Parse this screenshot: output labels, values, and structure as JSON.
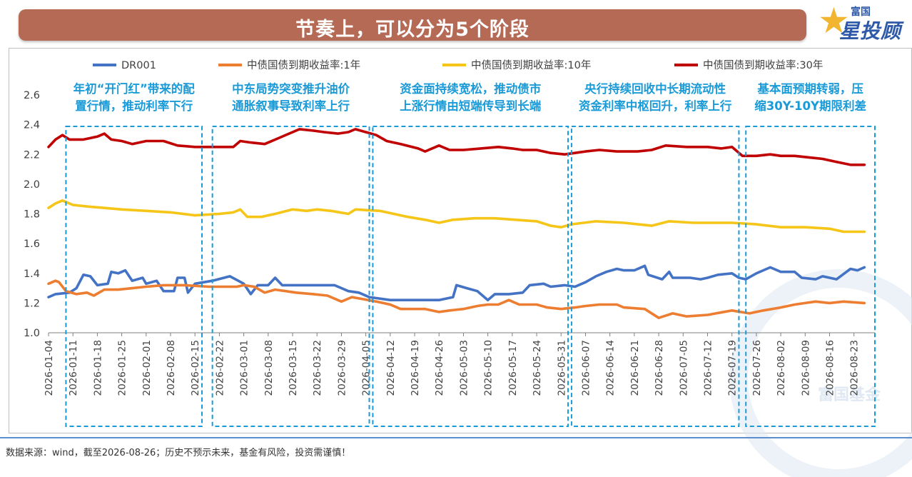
{
  "header": {
    "title": "节奏上，可以分为5个阶段"
  },
  "logo": {
    "top_text": "富国",
    "main_text": "星投顾",
    "icon": "star-icon"
  },
  "footer": {
    "source": "数据来源：wind，截至2026-08-26；历史不预示未来，基金有风险，投资需谨慎！"
  },
  "watermark": {
    "text": "富国基金"
  },
  "chart_data": {
    "type": "line",
    "title": "",
    "xlabel": "",
    "ylabel": "",
    "ylim": [
      1.0,
      2.6
    ],
    "yticks": [
      "1.0",
      "1.2",
      "1.4",
      "1.6",
      "1.8",
      "2.0",
      "2.2",
      "2.4",
      "2.6"
    ],
    "x_tick_labels": [
      "2026-01-04",
      "2026-01-11",
      "2026-01-18",
      "2026-01-25",
      "2026-02-01",
      "2026-02-08",
      "2026-02-15",
      "2026-02-22",
      "2026-03-01",
      "2026-03-08",
      "2026-03-15",
      "2026-03-22",
      "2026-03-29",
      "2026-04-05",
      "2026-04-12",
      "2026-04-19",
      "2026-04-26",
      "2026-05-03",
      "2026-05-10",
      "2026-05-17",
      "2026-05-24",
      "2026-05-31",
      "2026-06-07",
      "2026-06-14",
      "2026-06-21",
      "2026-06-28",
      "2026-07-05",
      "2026-07-12",
      "2026-07-19",
      "2026-07-26",
      "2026-08-02",
      "2026-08-09",
      "2026-08-16",
      "2026-08-23"
    ],
    "grid": false,
    "legend_position": "top",
    "series": [
      {
        "name": "DR001",
        "color": "#4472c4",
        "points": [
          [
            "2026-01-04",
            1.24
          ],
          [
            "2026-01-06",
            1.26
          ],
          [
            "2026-01-10",
            1.27
          ],
          [
            "2026-01-12",
            1.3
          ],
          [
            "2026-01-14",
            1.39
          ],
          [
            "2026-01-16",
            1.38
          ],
          [
            "2026-01-18",
            1.32
          ],
          [
            "2026-01-21",
            1.33
          ],
          [
            "2026-01-22",
            1.41
          ],
          [
            "2026-01-24",
            1.4
          ],
          [
            "2026-01-26",
            1.42
          ],
          [
            "2026-01-28",
            1.35
          ],
          [
            "2026-01-31",
            1.37
          ],
          [
            "2026-02-01",
            1.33
          ],
          [
            "2026-02-04",
            1.35
          ],
          [
            "2026-02-06",
            1.28
          ],
          [
            "2026-02-09",
            1.28
          ],
          [
            "2026-02-10",
            1.37
          ],
          [
            "2026-02-12",
            1.37
          ],
          [
            "2026-02-13",
            1.27
          ],
          [
            "2026-02-15",
            1.33
          ],
          [
            "2026-02-20",
            1.35
          ],
          [
            "2026-02-25",
            1.38
          ],
          [
            "2026-03-01",
            1.33
          ],
          [
            "2026-03-03",
            1.26
          ],
          [
            "2026-03-05",
            1.32
          ],
          [
            "2026-03-08",
            1.32
          ],
          [
            "2026-03-10",
            1.37
          ],
          [
            "2026-03-12",
            1.32
          ],
          [
            "2026-03-20",
            1.32
          ],
          [
            "2026-03-27",
            1.32
          ],
          [
            "2026-03-31",
            1.28
          ],
          [
            "2026-04-03",
            1.27
          ],
          [
            "2026-04-06",
            1.24
          ],
          [
            "2026-04-12",
            1.22
          ],
          [
            "2026-04-20",
            1.22
          ],
          [
            "2026-04-26",
            1.22
          ],
          [
            "2026-04-30",
            1.24
          ],
          [
            "2026-05-01",
            1.32
          ],
          [
            "2026-05-04",
            1.3
          ],
          [
            "2026-05-07",
            1.28
          ],
          [
            "2026-05-10",
            1.22
          ],
          [
            "2026-05-12",
            1.26
          ],
          [
            "2026-05-16",
            1.26
          ],
          [
            "2026-05-20",
            1.27
          ],
          [
            "2026-05-22",
            1.32
          ],
          [
            "2026-05-26",
            1.33
          ],
          [
            "2026-05-28",
            1.31
          ],
          [
            "2026-06-01",
            1.32
          ],
          [
            "2026-06-04",
            1.31
          ],
          [
            "2026-06-07",
            1.34
          ],
          [
            "2026-06-10",
            1.38
          ],
          [
            "2026-06-13",
            1.41
          ],
          [
            "2026-06-16",
            1.43
          ],
          [
            "2026-06-18",
            1.42
          ],
          [
            "2026-06-21",
            1.42
          ],
          [
            "2026-06-24",
            1.45
          ],
          [
            "2026-06-25",
            1.39
          ],
          [
            "2026-06-29",
            1.36
          ],
          [
            "2026-07-01",
            1.41
          ],
          [
            "2026-07-02",
            1.37
          ],
          [
            "2026-07-07",
            1.37
          ],
          [
            "2026-07-10",
            1.36
          ],
          [
            "2026-07-12",
            1.37
          ],
          [
            "2026-07-15",
            1.39
          ],
          [
            "2026-07-19",
            1.4
          ],
          [
            "2026-07-21",
            1.37
          ],
          [
            "2026-07-23",
            1.36
          ],
          [
            "2026-07-26",
            1.4
          ],
          [
            "2026-07-28",
            1.42
          ],
          [
            "2026-07-30",
            1.44
          ],
          [
            "2026-08-02",
            1.41
          ],
          [
            "2026-08-06",
            1.41
          ],
          [
            "2026-08-08",
            1.37
          ],
          [
            "2026-08-12",
            1.36
          ],
          [
            "2026-08-14",
            1.38
          ],
          [
            "2026-08-18",
            1.36
          ],
          [
            "2026-08-22",
            1.43
          ],
          [
            "2026-08-24",
            1.42
          ],
          [
            "2026-08-26",
            1.44
          ]
        ]
      },
      {
        "name": "中债国债到期收益率:1年",
        "color": "#ed7d31",
        "points": [
          [
            "2026-01-04",
            1.33
          ],
          [
            "2026-01-06",
            1.35
          ],
          [
            "2026-01-07",
            1.34
          ],
          [
            "2026-01-09",
            1.28
          ],
          [
            "2026-01-12",
            1.26
          ],
          [
            "2026-01-15",
            1.27
          ],
          [
            "2026-01-17",
            1.25
          ],
          [
            "2026-01-20",
            1.29
          ],
          [
            "2026-01-24",
            1.29
          ],
          [
            "2026-01-28",
            1.3
          ],
          [
            "2026-02-01",
            1.31
          ],
          [
            "2026-02-06",
            1.32
          ],
          [
            "2026-02-12",
            1.32
          ],
          [
            "2026-02-19",
            1.31
          ],
          [
            "2026-02-27",
            1.31
          ],
          [
            "2026-03-01",
            1.32
          ],
          [
            "2026-03-04",
            1.31
          ],
          [
            "2026-03-07",
            1.27
          ],
          [
            "2026-03-10",
            1.29
          ],
          [
            "2026-03-13",
            1.28
          ],
          [
            "2026-03-16",
            1.27
          ],
          [
            "2026-03-21",
            1.26
          ],
          [
            "2026-03-25",
            1.25
          ],
          [
            "2026-03-29",
            1.21
          ],
          [
            "2026-04-01",
            1.24
          ],
          [
            "2026-04-08",
            1.21
          ],
          [
            "2026-04-12",
            1.19
          ],
          [
            "2026-04-15",
            1.16
          ],
          [
            "2026-04-22",
            1.16
          ],
          [
            "2026-04-26",
            1.14
          ],
          [
            "2026-04-29",
            1.15
          ],
          [
            "2026-05-03",
            1.16
          ],
          [
            "2026-05-07",
            1.18
          ],
          [
            "2026-05-10",
            1.19
          ],
          [
            "2026-05-13",
            1.19
          ],
          [
            "2026-05-16",
            1.22
          ],
          [
            "2026-05-19",
            1.19
          ],
          [
            "2026-05-24",
            1.19
          ],
          [
            "2026-05-27",
            1.17
          ],
          [
            "2026-05-31",
            1.16
          ],
          [
            "2026-06-04",
            1.17
          ],
          [
            "2026-06-07",
            1.18
          ],
          [
            "2026-06-11",
            1.19
          ],
          [
            "2026-06-16",
            1.19
          ],
          [
            "2026-06-18",
            1.17
          ],
          [
            "2026-06-24",
            1.16
          ],
          [
            "2026-06-28",
            1.1
          ],
          [
            "2026-07-02",
            1.13
          ],
          [
            "2026-07-06",
            1.11
          ],
          [
            "2026-07-12",
            1.12
          ],
          [
            "2026-07-19",
            1.15
          ],
          [
            "2026-07-24",
            1.13
          ],
          [
            "2026-07-28",
            1.15
          ],
          [
            "2026-08-02",
            1.17
          ],
          [
            "2026-08-06",
            1.19
          ],
          [
            "2026-08-09",
            1.2
          ],
          [
            "2026-08-12",
            1.21
          ],
          [
            "2026-08-16",
            1.2
          ],
          [
            "2026-08-20",
            1.21
          ],
          [
            "2026-08-26",
            1.2
          ]
        ]
      },
      {
        "name": "中债国债到期收益率:10年",
        "color": "#f5c518",
        "points": [
          [
            "2026-01-04",
            1.84
          ],
          [
            "2026-01-06",
            1.87
          ],
          [
            "2026-01-08",
            1.89
          ],
          [
            "2026-01-11",
            1.86
          ],
          [
            "2026-01-15",
            1.85
          ],
          [
            "2026-01-20",
            1.84
          ],
          [
            "2026-01-25",
            1.83
          ],
          [
            "2026-02-01",
            1.82
          ],
          [
            "2026-02-08",
            1.81
          ],
          [
            "2026-02-15",
            1.79
          ],
          [
            "2026-02-22",
            1.8
          ],
          [
            "2026-02-26",
            1.81
          ],
          [
            "2026-02-28",
            1.83
          ],
          [
            "2026-03-02",
            1.78
          ],
          [
            "2026-03-06",
            1.78
          ],
          [
            "2026-03-10",
            1.8
          ],
          [
            "2026-03-15",
            1.83
          ],
          [
            "2026-03-19",
            1.82
          ],
          [
            "2026-03-22",
            1.83
          ],
          [
            "2026-03-26",
            1.82
          ],
          [
            "2026-03-31",
            1.8
          ],
          [
            "2026-04-02",
            1.83
          ],
          [
            "2026-04-09",
            1.82
          ],
          [
            "2026-04-13",
            1.8
          ],
          [
            "2026-04-17",
            1.78
          ],
          [
            "2026-04-22",
            1.76
          ],
          [
            "2026-04-26",
            1.74
          ],
          [
            "2026-04-30",
            1.76
          ],
          [
            "2026-05-06",
            1.77
          ],
          [
            "2026-05-12",
            1.77
          ],
          [
            "2026-05-18",
            1.76
          ],
          [
            "2026-05-24",
            1.75
          ],
          [
            "2026-05-28",
            1.72
          ],
          [
            "2026-05-31",
            1.71
          ],
          [
            "2026-06-03",
            1.73
          ],
          [
            "2026-06-10",
            1.75
          ],
          [
            "2026-06-18",
            1.74
          ],
          [
            "2026-06-26",
            1.72
          ],
          [
            "2026-07-01",
            1.75
          ],
          [
            "2026-07-08",
            1.74
          ],
          [
            "2026-07-15",
            1.74
          ],
          [
            "2026-07-19",
            1.74
          ],
          [
            "2026-07-26",
            1.73
          ],
          [
            "2026-08-02",
            1.71
          ],
          [
            "2026-08-09",
            1.71
          ],
          [
            "2026-08-16",
            1.7
          ],
          [
            "2026-08-20",
            1.68
          ],
          [
            "2026-08-26",
            1.68
          ]
        ]
      },
      {
        "name": "中债国债到期收益率:30年",
        "color": "#c00000",
        "points": [
          [
            "2026-01-04",
            2.25
          ],
          [
            "2026-01-06",
            2.3
          ],
          [
            "2026-01-08",
            2.33
          ],
          [
            "2026-01-10",
            2.3
          ],
          [
            "2026-01-14",
            2.3
          ],
          [
            "2026-01-18",
            2.32
          ],
          [
            "2026-01-20",
            2.34
          ],
          [
            "2026-01-22",
            2.3
          ],
          [
            "2026-01-25",
            2.29
          ],
          [
            "2026-01-28",
            2.27
          ],
          [
            "2026-02-01",
            2.29
          ],
          [
            "2026-02-06",
            2.29
          ],
          [
            "2026-02-10",
            2.26
          ],
          [
            "2026-02-15",
            2.25
          ],
          [
            "2026-02-22",
            2.25
          ],
          [
            "2026-02-26",
            2.25
          ],
          [
            "2026-02-28",
            2.29
          ],
          [
            "2026-03-03",
            2.28
          ],
          [
            "2026-03-07",
            2.27
          ],
          [
            "2026-03-11",
            2.31
          ],
          [
            "2026-03-14",
            2.34
          ],
          [
            "2026-03-17",
            2.37
          ],
          [
            "2026-03-21",
            2.36
          ],
          [
            "2026-03-24",
            2.35
          ],
          [
            "2026-03-28",
            2.34
          ],
          [
            "2026-03-31",
            2.35
          ],
          [
            "2026-04-02",
            2.37
          ],
          [
            "2026-04-05",
            2.35
          ],
          [
            "2026-04-08",
            2.33
          ],
          [
            "2026-04-11",
            2.29
          ],
          [
            "2026-04-15",
            2.27
          ],
          [
            "2026-04-20",
            2.24
          ],
          [
            "2026-04-22",
            2.22
          ],
          [
            "2026-04-26",
            2.26
          ],
          [
            "2026-04-29",
            2.23
          ],
          [
            "2026-05-03",
            2.23
          ],
          [
            "2026-05-08",
            2.24
          ],
          [
            "2026-05-13",
            2.25
          ],
          [
            "2026-05-17",
            2.24
          ],
          [
            "2026-05-20",
            2.23
          ],
          [
            "2026-05-24",
            2.23
          ],
          [
            "2026-05-28",
            2.21
          ],
          [
            "2026-06-01",
            2.2
          ],
          [
            "2026-06-04",
            2.21
          ],
          [
            "2026-06-07",
            2.22
          ],
          [
            "2026-06-11",
            2.23
          ],
          [
            "2026-06-16",
            2.22
          ],
          [
            "2026-06-22",
            2.22
          ],
          [
            "2026-06-26",
            2.23
          ],
          [
            "2026-06-30",
            2.26
          ],
          [
            "2026-07-06",
            2.25
          ],
          [
            "2026-07-12",
            2.25
          ],
          [
            "2026-07-16",
            2.24
          ],
          [
            "2026-07-19",
            2.25
          ],
          [
            "2026-07-22",
            2.19
          ],
          [
            "2026-07-26",
            2.19
          ],
          [
            "2026-07-30",
            2.2
          ],
          [
            "2026-08-02",
            2.19
          ],
          [
            "2026-08-06",
            2.19
          ],
          [
            "2026-08-10",
            2.18
          ],
          [
            "2026-08-14",
            2.17
          ],
          [
            "2026-08-18",
            2.15
          ],
          [
            "2026-08-22",
            2.13
          ],
          [
            "2026-08-26",
            2.13
          ]
        ]
      }
    ],
    "annotations": [
      {
        "line1": "年初“开门红”带来的配",
        "line2": "置行情，推动利率下行",
        "from": "2026-01-09",
        "to": "2026-02-17"
      },
      {
        "line1": "中东局势突变推升油价",
        "line2": "通胀叙事导致利率上行",
        "from": "2026-02-20",
        "to": "2026-04-06"
      },
      {
        "line1": "资金面持续宽松，推动债市",
        "line2": "上涨行情由短端传导到长端",
        "from": "2026-04-07",
        "to": "2026-06-02"
      },
      {
        "line1": "央行持续回收中长期流动性",
        "line2": "资金利率中枢回升，利率上行",
        "from": "2026-06-03",
        "to": "2026-07-21"
      },
      {
        "line1": "基本面预期转弱，压",
        "line2": "缩30Y-10Y期限利差",
        "from": "2026-07-23",
        "to": "2026-08-29"
      }
    ]
  }
}
